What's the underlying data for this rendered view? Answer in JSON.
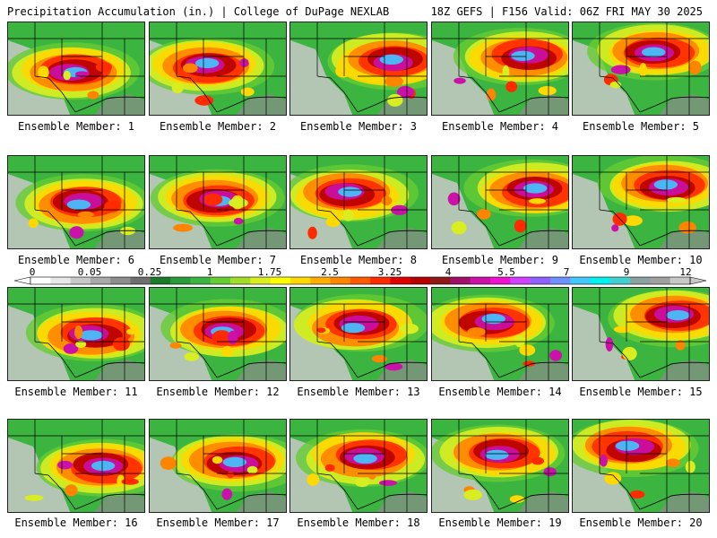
{
  "header": {
    "left": "Precipitation Accumulation (in.) | College of DuPage NEXLAB",
    "right": "18Z GEFS | F156 Valid: 06Z FRI MAY 30 2025"
  },
  "colorbar": {
    "ticks": [
      "0",
      "0.05",
      "0.25",
      "1",
      "1.75",
      "2.5",
      "3.25",
      "4",
      "5.5",
      "7",
      "9",
      "12"
    ],
    "colors": [
      "#ffffff",
      "#e8e8e8",
      "#c8c8c8",
      "#a8a8a8",
      "#8c8c8c",
      "#6e6e6e",
      "#1a7a2a",
      "#2a9a3a",
      "#3cb440",
      "#66cc33",
      "#a0dc28",
      "#d8ee20",
      "#ffff00",
      "#ffd800",
      "#ffae00",
      "#ff8400",
      "#ff5a00",
      "#ff2a00",
      "#e00000",
      "#b80000",
      "#901818",
      "#a0106a",
      "#cc10aa",
      "#f010d0",
      "#d040ff",
      "#9060ff",
      "#7090ff",
      "#40c8ff",
      "#00f0f0",
      "#40d0d0",
      "#8ca0a0",
      "#a0a0a0",
      "#c8c8c8"
    ]
  },
  "members": [
    {
      "label": "Ensemble Member: 1"
    },
    {
      "label": "Ensemble Member: 2"
    },
    {
      "label": "Ensemble Member: 3"
    },
    {
      "label": "Ensemble Member: 4"
    },
    {
      "label": "Ensemble Member: 5"
    },
    {
      "label": "Ensemble Member: 6"
    },
    {
      "label": "Ensemble Member: 7"
    },
    {
      "label": "Ensemble Member: 8"
    },
    {
      "label": "Ensemble Member: 9"
    },
    {
      "label": "Ensemble Member: 10"
    },
    {
      "label": "Ensemble Member: 11"
    },
    {
      "label": "Ensemble Member: 12"
    },
    {
      "label": "Ensemble Member: 13"
    },
    {
      "label": "Ensemble Member: 14"
    },
    {
      "label": "Ensemble Member: 15"
    },
    {
      "label": "Ensemble Member: 16"
    },
    {
      "label": "Ensemble Member: 17"
    },
    {
      "label": "Ensemble Member: 18"
    },
    {
      "label": "Ensemble Member: 19"
    },
    {
      "label": "Ensemble Member: 20"
    }
  ]
}
